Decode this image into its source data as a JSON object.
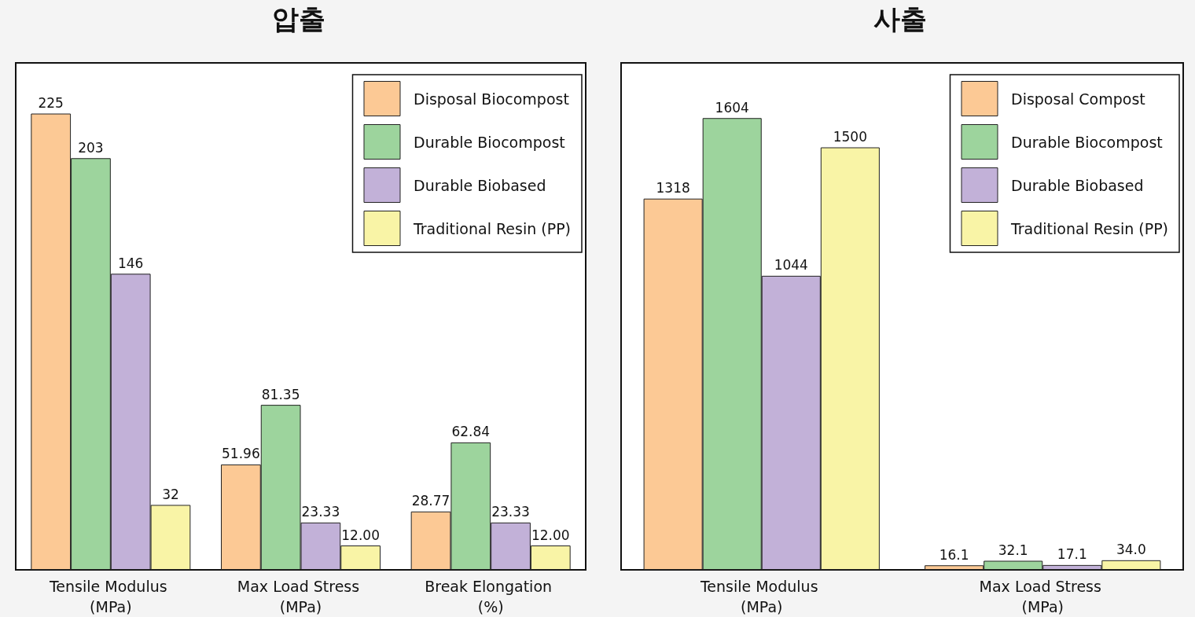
{
  "chart_data": [
    {
      "type": "bar",
      "title": "압출",
      "categories": [
        "Tensile Modulus (MPa)",
        "Max Load Stress (MPa)",
        "Break Elongation (%)"
      ],
      "legend": "top right",
      "series": [
        {
          "name": "Disposal Biocompost",
          "color": "#fcc995",
          "values": [
            225,
            51.96,
            28.77
          ],
          "value_labels": [
            "225",
            "51.96",
            "28.77"
          ]
        },
        {
          "name": "Durable Biocompost",
          "color": "#9dd49d",
          "values": [
            203,
            81.35,
            62.84
          ],
          "value_labels": [
            "203",
            "81.35",
            "62.84"
          ]
        },
        {
          "name": "Durable Biobased",
          "color": "#c2b1d8",
          "values": [
            146,
            23.33,
            23.33
          ],
          "value_labels": [
            "146",
            "23.33",
            "23.33"
          ]
        },
        {
          "name": "Traditional Resin (PP)",
          "color": "#f9f4a6",
          "values": [
            32,
            12.0,
            12.0
          ],
          "value_labels": [
            "32",
            "12.00",
            "12.00"
          ]
        }
      ]
    },
    {
      "type": "bar",
      "title": "사출",
      "categories": [
        "Tensile Modulus (MPa)",
        "Max Load Stress (MPa)"
      ],
      "legend": "top right",
      "series": [
        {
          "name": "Disposal Compost",
          "color": "#fcc995",
          "values": [
            1318,
            16.1
          ],
          "value_labels": [
            "1318",
            "16.1"
          ]
        },
        {
          "name": "Durable Biocompost",
          "color": "#9dd49d",
          "values": [
            1604,
            32.1
          ],
          "value_labels": [
            "1604",
            "32.1"
          ]
        },
        {
          "name": "Durable Biobased",
          "color": "#c2b1d8",
          "values": [
            1044,
            17.1
          ],
          "value_labels": [
            "1044",
            "17.1"
          ]
        },
        {
          "name": "Traditional Resin (PP)",
          "color": "#f9f4a6",
          "values": [
            1500,
            34.0
          ],
          "value_labels": [
            "1500",
            "34.0"
          ]
        }
      ]
    }
  ]
}
